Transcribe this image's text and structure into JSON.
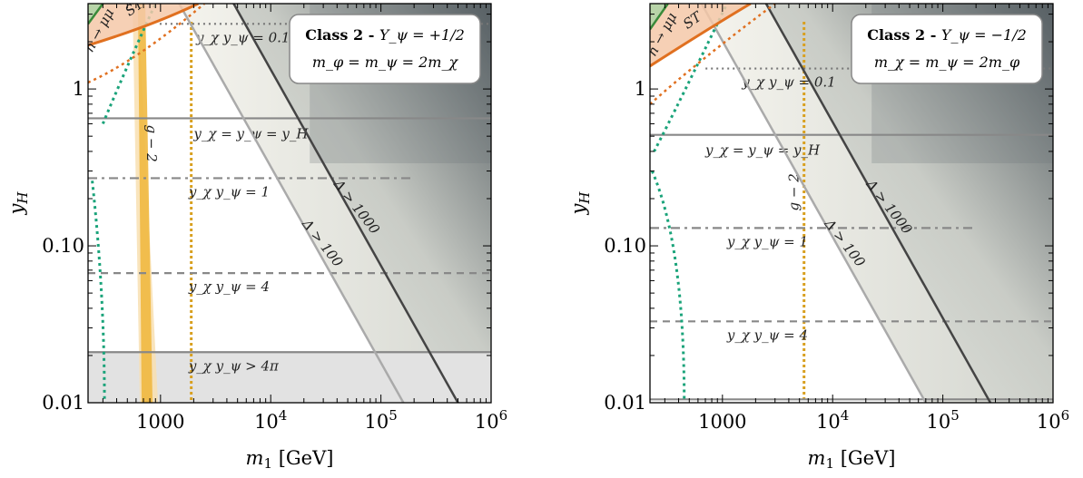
{
  "chart_data": [
    {
      "type": "region-plot",
      "xlabel": "m_1 [GeV]",
      "ylabel": "y_H",
      "xscale": "log",
      "yscale": "log",
      "xlim": [
        220,
        1000000
      ],
      "ylim": [
        0.01,
        3.5
      ],
      "x_ticks": [
        {
          "v": 1000,
          "label": "1000"
        },
        {
          "v": 10000,
          "label": "10^4"
        },
        {
          "v": 100000,
          "label": "10^5"
        },
        {
          "v": 1000000,
          "label": "10^6"
        }
      ],
      "y_ticks": [
        {
          "v": 0.01,
          "label": "0.01"
        },
        {
          "v": 0.1,
          "label": "0.10"
        },
        {
          "v": 1,
          "label": "1"
        }
      ],
      "box": {
        "title": "Class 2 - ",
        "hyper": "Y_ψ = +1/2",
        "relation": "m_φ = m_ψ = 2m_χ",
        "legend_position": "top-right"
      },
      "hlines": [
        {
          "y": 0.65,
          "style": "solid",
          "label": "y_χ = y_ψ = y_H",
          "label_x": 2000
        },
        {
          "y": 0.27,
          "style": "dashdot",
          "label": "y_χ y_ψ = 1",
          "label_x": 1800
        },
        {
          "y": 0.067,
          "style": "dashed",
          "label": "y_χ y_ψ = 4",
          "label_x": 1800
        },
        {
          "y": 0.021,
          "style": "solid",
          "label": "y_χ y_ψ > 4π",
          "label_x": 1800
        },
        {
          "y": 2.6,
          "style": "dotted",
          "label": "y_χ y_ψ = 0.1",
          "label_x": 2100
        }
      ],
      "delta_bands": [
        {
          "label": "Δ > 100",
          "x_at_ymin": 160000
        },
        {
          "label": "Δ > 1000",
          "x_at_ymin": 500000
        }
      ],
      "g2": {
        "label": "g − 2",
        "center_x": 700,
        "dotted_x": 1900
      },
      "st_label": "ST",
      "hmumu_label": "h → μμ",
      "colors": {
        "st": "#e07020",
        "hmumu": "#3a8a3a",
        "green_dotted": "#1aa37a",
        "g2_band": "#f0b840",
        "g2_dotted": "#d8a020",
        "delta_line": "#444444",
        "delta_light": "#aaaaaa"
      }
    },
    {
      "type": "region-plot",
      "xlabel": "m_1 [GeV]",
      "ylabel": "y_H",
      "xscale": "log",
      "yscale": "log",
      "xlim": [
        220,
        1000000
      ],
      "ylim": [
        0.01,
        3.5
      ],
      "x_ticks": [
        {
          "v": 1000,
          "label": "1000"
        },
        {
          "v": 10000,
          "label": "10^4"
        },
        {
          "v": 100000,
          "label": "10^5"
        },
        {
          "v": 1000000,
          "label": "10^6"
        }
      ],
      "y_ticks": [
        {
          "v": 0.01,
          "label": "0.01"
        },
        {
          "v": 0.1,
          "label": "0.10"
        },
        {
          "v": 1,
          "label": "1"
        }
      ],
      "box": {
        "title": "Class 2 - ",
        "hyper": "Y_ψ = −1/2",
        "relation": "m_χ = m_ψ = 2m_φ",
        "legend_position": "top-right"
      },
      "hlines": [
        {
          "y": 0.51,
          "style": "solid",
          "label": "y_χ = y_ψ = y_H",
          "label_x": 700
        },
        {
          "y": 0.13,
          "style": "dashdot",
          "label": "y_χ y_ψ = 1",
          "label_x": 1100
        },
        {
          "y": 0.033,
          "style": "dashed",
          "label": "y_χ y_ψ = 4",
          "label_x": 1100
        },
        {
          "y": 0.0105,
          "style": "solid",
          "label": "",
          "label_x": 0
        },
        {
          "y": 1.35,
          "style": "dotted",
          "label": "y_χ y_ψ = 0.1",
          "label_x": 1500
        }
      ],
      "delta_bands": [
        {
          "label": "Δ > 100",
          "x_at_ymin": 70000
        },
        {
          "label": "Δ > 1000",
          "x_at_ymin": 270000
        }
      ],
      "g2": {
        "label": "g − 2",
        "center_x": 0,
        "dotted_x": 5500
      },
      "st_label": "ST",
      "hmumu_label": "h → μμ",
      "colors": {
        "st": "#e07020",
        "hmumu": "#3a8a3a",
        "green_dotted": "#1aa37a",
        "g2_band": "#f0b840",
        "g2_dotted": "#d8a020",
        "delta_line": "#444444",
        "delta_light": "#aaaaaa"
      }
    }
  ]
}
